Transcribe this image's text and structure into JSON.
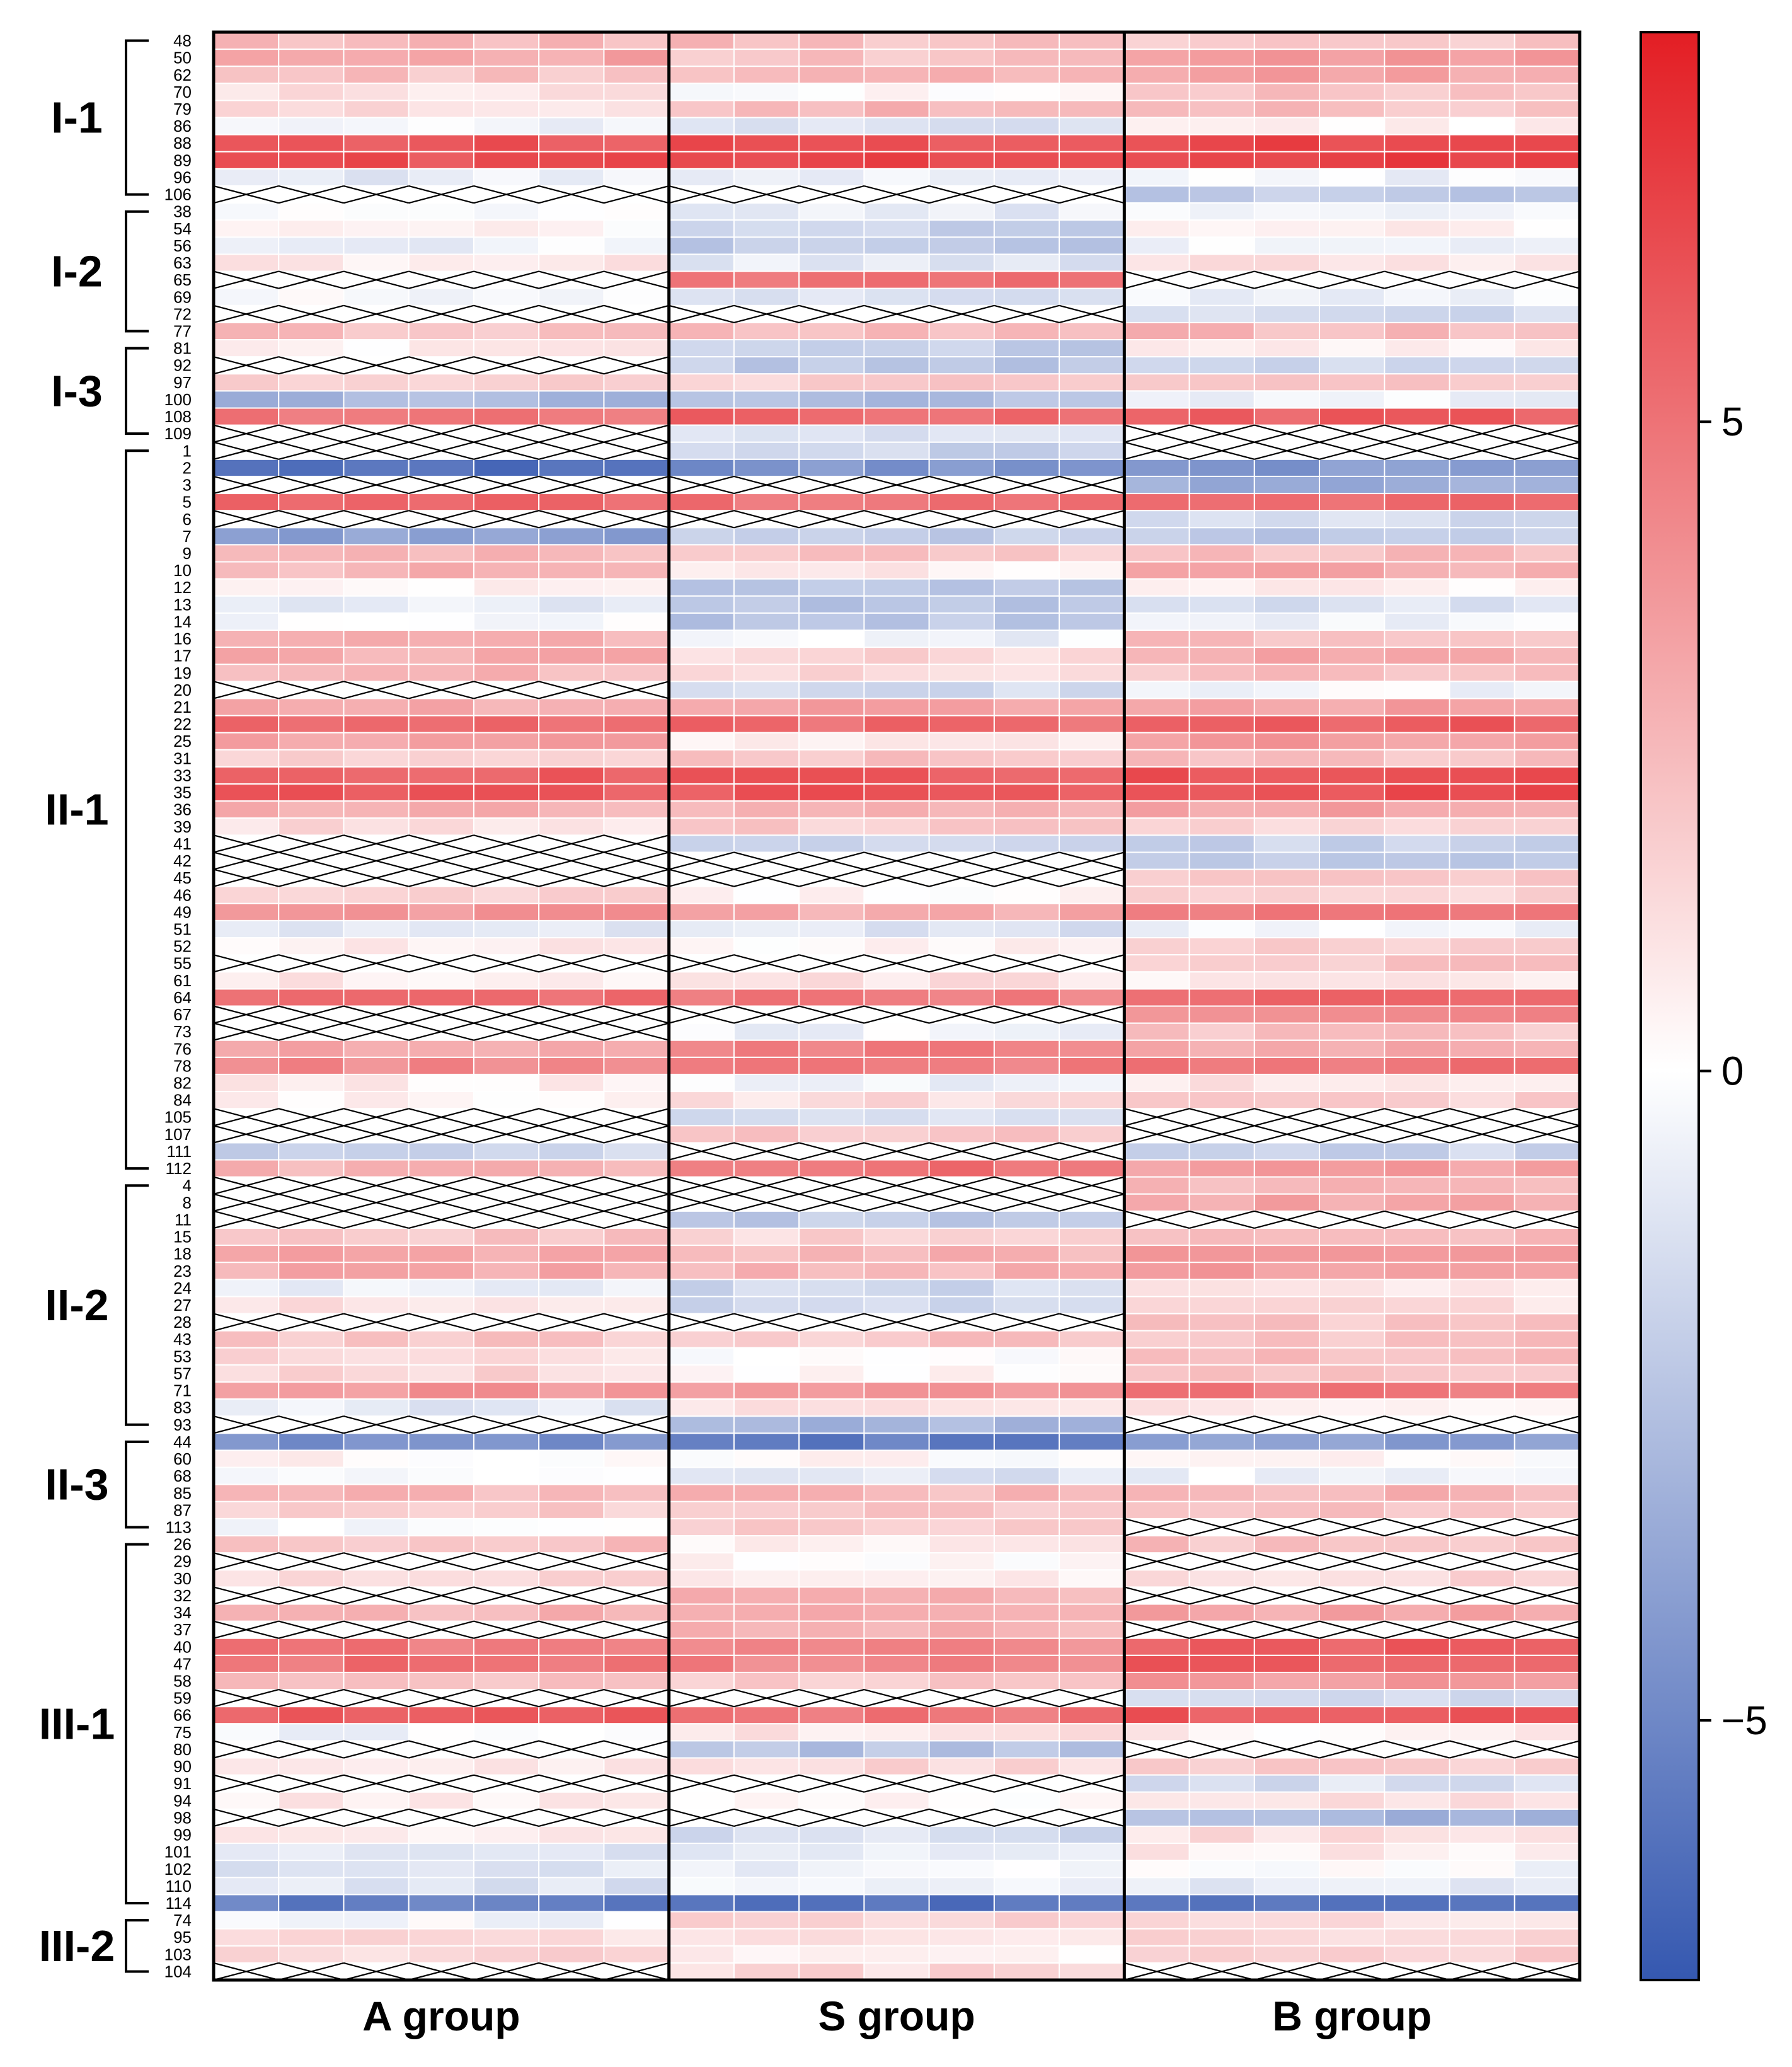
{
  "chart_data": {
    "type": "heatmap",
    "title": "",
    "column_groups": [
      "A group",
      "S group",
      "B group"
    ],
    "columns_per_group": 7,
    "colorbar": {
      "ticks": [
        5,
        0,
        -5
      ],
      "tick_labels": [
        "5",
        "0",
        "−5"
      ],
      "range": [
        -7,
        8
      ],
      "low_color": "#3558b0",
      "mid_color": "#ffffff",
      "high_color": "#e31e24"
    },
    "missing_marker": "X (crossed cell = no data)",
    "row_groups": [
      {
        "label": "I-1",
        "rows": [
          "48",
          "50",
          "62",
          "70",
          "79",
          "86",
          "88",
          "89",
          "96",
          "106"
        ]
      },
      {
        "label": "I-2",
        "rows": [
          "38",
          "54",
          "56",
          "63",
          "65",
          "69",
          "72",
          "77"
        ]
      },
      {
        "label": "I-3",
        "rows": [
          "81",
          "92",
          "97",
          "100",
          "108",
          "109"
        ]
      },
      {
        "label": "II-1",
        "rows": [
          "1",
          "2",
          "3",
          "5",
          "6",
          "7",
          "9",
          "10",
          "12",
          "13",
          "14",
          "16",
          "17",
          "19",
          "20",
          "21",
          "22",
          "25",
          "31",
          "33",
          "35",
          "36",
          "39",
          "41",
          "42",
          "45",
          "46",
          "49",
          "51",
          "52",
          "55",
          "61",
          "64",
          "67",
          "73",
          "76",
          "78",
          "82",
          "84",
          "105",
          "107",
          "111",
          "112"
        ]
      },
      {
        "label": "II-2",
        "rows": [
          "4",
          "8",
          "11",
          "15",
          "18",
          "23",
          "24",
          "27",
          "28",
          "43",
          "53",
          "57",
          "71",
          "83",
          "93"
        ]
      },
      {
        "label": "II-3",
        "rows": [
          "44",
          "60",
          "68",
          "85",
          "87",
          "113"
        ]
      },
      {
        "label": "III-1",
        "rows": [
          "26",
          "29",
          "30",
          "32",
          "34",
          "37",
          "40",
          "47",
          "58",
          "59",
          "66",
          "75",
          "80",
          "90",
          "91",
          "94",
          "98",
          "99",
          "101",
          "102",
          "110",
          "114"
        ]
      },
      {
        "label": "III-2",
        "rows": [
          "74",
          "95",
          "103",
          "104"
        ]
      }
    ],
    "row_values": {
      "48": [
        2.5,
        2.3,
        2.0
      ],
      "50": [
        3.2,
        2.0,
        3.5
      ],
      "62": [
        2.2,
        2.4,
        3.3
      ],
      "70": [
        1.0,
        0.2,
        2.0
      ],
      "79": [
        1.2,
        2.5,
        2.2
      ],
      "86": [
        -0.6,
        -1.2,
        0.4
      ],
      "88": [
        6.0,
        6.2,
        6.6
      ],
      "89": [
        6.3,
        6.4,
        6.8
      ],
      "96": [
        -0.8,
        -0.4,
        -0.5
      ],
      "106": [
        null,
        null,
        -2.2
      ],
      "38": [
        -0.4,
        -0.8,
        -0.3
      ],
      "54": [
        0.3,
        -1.8,
        0.5
      ],
      "56": [
        -0.5,
        -2.2,
        -0.5
      ],
      "63": [
        0.8,
        -1.0,
        0.9
      ],
      "65": [
        null,
        4.8,
        null
      ],
      "69": [
        -0.3,
        -1.2,
        -0.5
      ],
      "72": [
        null,
        null,
        -1.5
      ],
      "77": [
        2.2,
        2.4,
        2.5
      ],
      "81": [
        0.5,
        -2.0,
        0.6
      ],
      "92": [
        null,
        -2.2,
        -1.8
      ],
      "97": [
        1.5,
        1.8,
        1.8
      ],
      "100": [
        -3.0,
        -2.6,
        -0.6
      ],
      "108": [
        5.0,
        5.4,
        5.6
      ],
      "109": [
        null,
        -1.2,
        null
      ],
      "1": [
        null,
        -1.8,
        null
      ],
      "2": [
        -6.2,
        -4.5,
        -4.2
      ],
      "3": [
        null,
        null,
        -3.5
      ],
      "5": [
        5.2,
        5.0,
        5.2
      ],
      "6": [
        null,
        null,
        -1.5
      ],
      "7": [
        -3.8,
        -2.0,
        -2.2
      ],
      "9": [
        2.4,
        2.0,
        2.2
      ],
      "10": [
        2.6,
        0.6,
        3.0
      ],
      "12": [
        0.6,
        -2.4,
        0.5
      ],
      "13": [
        -0.8,
        -2.6,
        -1.3
      ],
      "14": [
        -0.2,
        -2.4,
        -0.4
      ],
      "16": [
        2.6,
        -0.5,
        2.4
      ],
      "17": [
        2.8,
        1.5,
        2.9
      ],
      "19": [
        2.5,
        1.2,
        2.2
      ],
      "20": [
        null,
        -1.6,
        -0.3
      ],
      "21": [
        3.0,
        3.5,
        3.3
      ],
      "22": [
        5.2,
        5.2,
        5.8
      ],
      "25": [
        3.4,
        0.5,
        3.6
      ],
      "31": [
        1.9,
        2.0,
        2.1
      ],
      "33": [
        5.6,
        5.8,
        6.1
      ],
      "35": [
        5.8,
        5.9,
        6.3
      ],
      "36": [
        2.9,
        2.5,
        3.2
      ],
      "39": [
        1.2,
        1.8,
        1.5
      ],
      "41": [
        null,
        -1.8,
        -1.8
      ],
      "42": [
        null,
        null,
        -2.2
      ],
      "45": [
        null,
        null,
        2.2
      ],
      "46": [
        1.5,
        0.2,
        1.5
      ],
      "49": [
        3.8,
        3.0,
        4.5
      ],
      "51": [
        -0.8,
        -1.2,
        -0.4
      ],
      "52": [
        0.6,
        0.4,
        1.9
      ],
      "55": [
        null,
        null,
        2.0
      ],
      "61": [
        0.8,
        1.0,
        0.6
      ],
      "64": [
        5.2,
        4.6,
        5.5
      ],
      "67": [
        null,
        null,
        4.2
      ],
      "73": [
        null,
        -0.5,
        2.0
      ],
      "76": [
        3.0,
        4.5,
        3.2
      ],
      "78": [
        4.2,
        4.5,
        4.8
      ],
      "82": [
        0.6,
        -0.5,
        0.8
      ],
      "84": [
        0.3,
        1.2,
        1.6
      ],
      "105": [
        null,
        -1.6,
        null
      ],
      "107": [
        null,
        2.0,
        null
      ],
      "111": [
        -1.8,
        null,
        -1.8
      ],
      "112": [
        2.5,
        5.0,
        3.5
      ],
      "4": [
        null,
        null,
        2.6
      ],
      "8": [
        null,
        null,
        3.2
      ],
      "11": [
        null,
        -2.2,
        null
      ],
      "15": [
        2.0,
        1.5,
        2.2
      ],
      "18": [
        3.2,
        2.6,
        3.5
      ],
      "23": [
        3.0,
        2.6,
        3.6
      ],
      "24": [
        -0.8,
        -1.6,
        1.0
      ],
      "27": [
        1.0,
        -1.8,
        1.1
      ],
      "28": [
        null,
        null,
        2.0
      ],
      "43": [
        2.0,
        2.0,
        2.1
      ],
      "53": [
        1.2,
        0.2,
        2.2
      ],
      "57": [
        1.4,
        0.4,
        2.3
      ],
      "71": [
        3.8,
        3.5,
        4.8
      ],
      "83": [
        -0.8,
        1.2,
        0.8
      ],
      "93": [
        null,
        -3.0,
        null
      ],
      "44": [
        -4.5,
        -5.5,
        -4.0
      ],
      "60": [
        0.3,
        0.2,
        0.3
      ],
      "68": [
        -0.5,
        -1.2,
        -0.5
      ],
      "85": [
        2.5,
        2.5,
        2.7
      ],
      "87": [
        1.8,
        1.8,
        2.0
      ],
      "113": [
        -0.5,
        2.0,
        null
      ],
      "26": [
        2.2,
        0.6,
        2.2
      ],
      "29": [
        null,
        0.3,
        null
      ],
      "30": [
        1.2,
        0.5,
        1.3
      ],
      "32": [
        null,
        2.6,
        null
      ],
      "34": [
        2.6,
        2.8,
        3.2
      ],
      "37": [
        null,
        2.8,
        null
      ],
      "40": [
        4.8,
        4.2,
        5.6
      ],
      "47": [
        5.0,
        4.4,
        5.8
      ],
      "58": [
        2.2,
        2.0,
        3.5
      ],
      "59": [
        null,
        null,
        -1.8
      ],
      "66": [
        5.6,
        5.0,
        5.8
      ],
      "75": [
        -0.3,
        1.0,
        0.5
      ],
      "80": [
        null,
        -2.5,
        null
      ],
      "90": [
        1.0,
        1.5,
        2.0
      ],
      "91": [
        null,
        null,
        -1.3
      ],
      "94": [
        0.6,
        0.3,
        1.2
      ],
      "98": [
        null,
        null,
        -3.0
      ],
      "99": [
        0.8,
        -1.4,
        1.2
      ],
      "101": [
        -1.2,
        -1.0,
        0.7
      ],
      "102": [
        -1.0,
        -0.5,
        -0.2
      ],
      "110": [
        -1.1,
        -0.7,
        -0.7
      ],
      "114": [
        -5.4,
        -6.0,
        -5.5
      ],
      "74": [
        -0.3,
        1.4,
        1.2
      ],
      "95": [
        1.2,
        1.0,
        1.4
      ],
      "103": [
        1.5,
        0.4,
        1.6
      ],
      "104": [
        null,
        1.3,
        null
      ]
    }
  }
}
